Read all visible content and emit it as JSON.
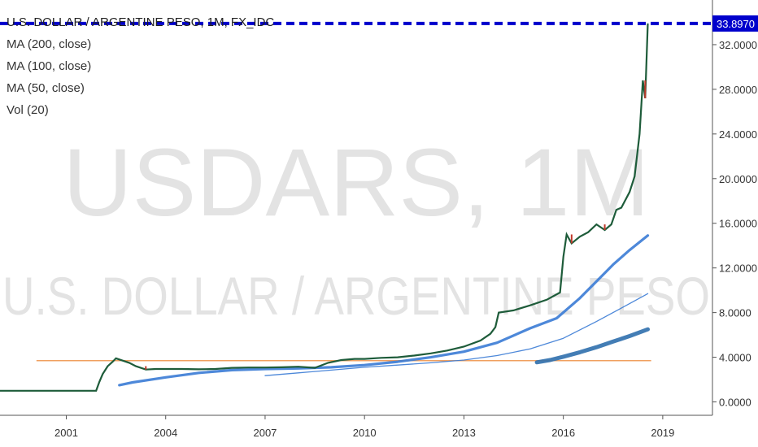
{
  "chart_data": {
    "type": "line",
    "title": "U.S. DOLLAR / ARGENTINE PESO, 1M, FX_IDC",
    "watermark_symbol": "USDARS, 1M",
    "watermark_name": "U.S. DOLLAR / ARGENTINE PESO",
    "legend": [
      "MA (200, close)",
      "MA (100, close)",
      "MA (50, close)",
      "Vol (20)"
    ],
    "last_price_label": "33.8970",
    "last_price": 33.897,
    "horizontal_line": 3.7,
    "xlim": [
      1999.0,
      2020.5
    ],
    "ylim": [
      -1.2,
      36.0
    ],
    "x_ticks": [
      {
        "x": 2001,
        "label": "2001"
      },
      {
        "x": 2004,
        "label": "2004"
      },
      {
        "x": 2007,
        "label": "2007"
      },
      {
        "x": 2010,
        "label": "2010"
      },
      {
        "x": 2013,
        "label": "2013"
      },
      {
        "x": 2016,
        "label": "2016"
      },
      {
        "x": 2019,
        "label": "2019"
      }
    ],
    "y_ticks": [
      {
        "y": 0,
        "label": "0.0000"
      },
      {
        "y": 4,
        "label": "4.0000"
      },
      {
        "y": 8,
        "label": "8.0000"
      },
      {
        "y": 12,
        "label": "12.0000"
      },
      {
        "y": 16,
        "label": "16.0000"
      },
      {
        "y": 20,
        "label": "20.0000"
      },
      {
        "y": 24,
        "label": "24.0000"
      },
      {
        "y": 28,
        "label": "28.0000"
      },
      {
        "y": 32,
        "label": "32.0000"
      }
    ],
    "colors": {
      "price": "#1e5c3a",
      "price_down": "#c0392b",
      "ma": "#3a7bd5",
      "ma_thick": "#2f6fad",
      "horizontal": "#f0a060",
      "last_price": "#0000cc",
      "watermark": "#e3e3e3"
    },
    "series": [
      {
        "name": "U.S. DOLLAR / ARGENTINE PESO",
        "points": [
          [
            1999.0,
            1.0
          ],
          [
            2001.5,
            1.0
          ],
          [
            2001.9,
            1.0
          ],
          [
            2002.0,
            1.8
          ],
          [
            2002.1,
            2.5
          ],
          [
            2002.25,
            3.2
          ],
          [
            2002.4,
            3.6
          ],
          [
            2002.5,
            3.9
          ],
          [
            2002.7,
            3.7
          ],
          [
            2002.9,
            3.5
          ],
          [
            2003.1,
            3.2
          ],
          [
            2003.4,
            2.9
          ],
          [
            2003.7,
            2.95
          ],
          [
            2004.0,
            2.95
          ],
          [
            2004.5,
            2.95
          ],
          [
            2005.0,
            2.92
          ],
          [
            2005.5,
            2.95
          ],
          [
            2006.0,
            3.05
          ],
          [
            2006.5,
            3.08
          ],
          [
            2007.0,
            3.08
          ],
          [
            2007.5,
            3.1
          ],
          [
            2008.0,
            3.15
          ],
          [
            2008.5,
            3.05
          ],
          [
            2008.9,
            3.5
          ],
          [
            2009.3,
            3.75
          ],
          [
            2009.7,
            3.85
          ],
          [
            2010.0,
            3.85
          ],
          [
            2010.5,
            3.95
          ],
          [
            2011.0,
            4.0
          ],
          [
            2011.5,
            4.15
          ],
          [
            2012.0,
            4.35
          ],
          [
            2012.5,
            4.6
          ],
          [
            2013.0,
            4.95
          ],
          [
            2013.5,
            5.5
          ],
          [
            2013.8,
            6.1
          ],
          [
            2013.95,
            6.7
          ],
          [
            2014.05,
            8.0
          ],
          [
            2014.5,
            8.2
          ],
          [
            2015.0,
            8.65
          ],
          [
            2015.5,
            9.15
          ],
          [
            2015.9,
            9.8
          ],
          [
            2016.0,
            13.0
          ],
          [
            2016.1,
            15.0
          ],
          [
            2016.25,
            14.2
          ],
          [
            2016.5,
            14.8
          ],
          [
            2016.75,
            15.2
          ],
          [
            2017.0,
            15.9
          ],
          [
            2017.25,
            15.4
          ],
          [
            2017.45,
            15.9
          ],
          [
            2017.6,
            17.2
          ],
          [
            2017.75,
            17.4
          ],
          [
            2018.0,
            18.8
          ],
          [
            2018.15,
            20.2
          ],
          [
            2018.3,
            24.0
          ],
          [
            2018.4,
            28.8
          ],
          [
            2018.47,
            27.2
          ],
          [
            2018.55,
            33.9
          ]
        ]
      },
      {
        "name": "MA (200, close)",
        "points": [
          [
            2015.2,
            3.55
          ],
          [
            2015.6,
            3.75
          ],
          [
            2016.0,
            4.05
          ],
          [
            2016.5,
            4.45
          ],
          [
            2017.0,
            4.9
          ],
          [
            2017.5,
            5.4
          ],
          [
            2018.0,
            5.9
          ],
          [
            2018.55,
            6.5
          ]
        ]
      },
      {
        "name": "MA (100, close)",
        "points": [
          [
            2007.0,
            2.35
          ],
          [
            2008.0,
            2.6
          ],
          [
            2009.0,
            2.85
          ],
          [
            2010.0,
            3.1
          ],
          [
            2011.0,
            3.3
          ],
          [
            2012.0,
            3.5
          ],
          [
            2013.0,
            3.75
          ],
          [
            2014.0,
            4.15
          ],
          [
            2015.0,
            4.75
          ],
          [
            2016.0,
            5.7
          ],
          [
            2017.0,
            7.2
          ],
          [
            2017.5,
            8.0
          ],
          [
            2018.0,
            8.8
          ],
          [
            2018.55,
            9.7
          ]
        ]
      },
      {
        "name": "MA (50, close)",
        "points": [
          [
            2002.6,
            1.5
          ],
          [
            2003.0,
            1.75
          ],
          [
            2004.0,
            2.2
          ],
          [
            2005.0,
            2.6
          ],
          [
            2006.0,
            2.85
          ],
          [
            2007.0,
            2.95
          ],
          [
            2008.0,
            3.0
          ],
          [
            2009.0,
            3.1
          ],
          [
            2010.0,
            3.3
          ],
          [
            2011.0,
            3.6
          ],
          [
            2012.0,
            4.0
          ],
          [
            2013.0,
            4.5
          ],
          [
            2014.0,
            5.3
          ],
          [
            2015.0,
            6.6
          ],
          [
            2015.8,
            7.5
          ],
          [
            2016.5,
            9.3
          ],
          [
            2017.0,
            10.8
          ],
          [
            2017.5,
            12.3
          ],
          [
            2018.0,
            13.6
          ],
          [
            2018.55,
            14.9
          ]
        ]
      }
    ]
  }
}
